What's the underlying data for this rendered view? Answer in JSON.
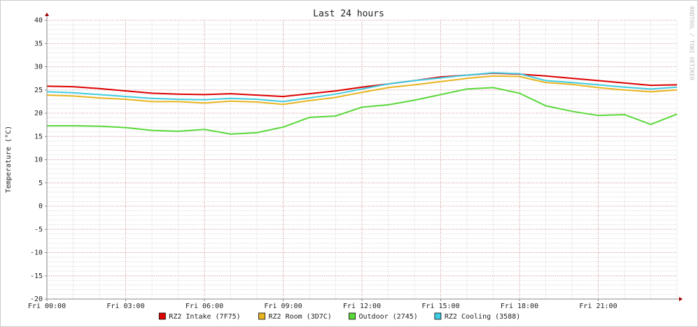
{
  "chart_data": {
    "type": "line",
    "title": "Last 24 hours",
    "y_label": "Temperature (°C)",
    "watermark": "RRDTOOL / TOBI OETIKER",
    "x": [
      0,
      1,
      2,
      3,
      4,
      5,
      6,
      7,
      8,
      9,
      10,
      11,
      12,
      13,
      14,
      15,
      16,
      17,
      18,
      19,
      20,
      21,
      22,
      23,
      24
    ],
    "xlim": [
      0,
      24
    ],
    "xticks": [
      {
        "value": 0,
        "label": "Fri 00:00"
      },
      {
        "value": 3,
        "label": "Fri 03:00"
      },
      {
        "value": 6,
        "label": "Fri 06:00"
      },
      {
        "value": 9,
        "label": "Fri 09:00"
      },
      {
        "value": 12,
        "label": "Fri 12:00"
      },
      {
        "value": 15,
        "label": "Fri 15:00"
      },
      {
        "value": 18,
        "label": "Fri 18:00"
      },
      {
        "value": 21,
        "label": "Fri 21:00"
      }
    ],
    "ylim": [
      -20,
      40
    ],
    "yticks": [
      -20,
      -15,
      -10,
      -5,
      0,
      5,
      10,
      15,
      20,
      25,
      30,
      35,
      40
    ],
    "grid": true,
    "legend": "bottom",
    "series": [
      {
        "name": "RZ2 Intake (7F75)",
        "color": "#dd0000",
        "values": [
          25.8,
          25.7,
          25.3,
          24.8,
          24.3,
          24.1,
          24.0,
          24.2,
          23.9,
          23.6,
          24.2,
          24.8,
          25.6,
          26.3,
          27.0,
          27.8,
          28.2,
          28.6,
          28.4,
          28.0,
          27.5,
          27.0,
          26.5,
          26.0,
          26.1
        ]
      },
      {
        "name": "RZ2 Room (3D7C)",
        "color": "#e8b420",
        "values": [
          23.9,
          23.7,
          23.3,
          23.0,
          22.5,
          22.5,
          22.2,
          22.6,
          22.4,
          21.9,
          22.7,
          23.4,
          24.5,
          25.5,
          26.1,
          26.8,
          27.5,
          28.0,
          27.9,
          26.6,
          26.2,
          25.5,
          25.0,
          24.6,
          25.0
        ]
      },
      {
        "name": "Outdoor (2745)",
        "color": "#5ad83a",
        "values": [
          17.3,
          17.3,
          17.2,
          16.9,
          16.3,
          16.1,
          16.5,
          15.5,
          15.8,
          17.0,
          19.1,
          19.4,
          21.3,
          21.8,
          22.8,
          24.0,
          25.2,
          25.5,
          24.3,
          21.6,
          20.4,
          19.5,
          19.7,
          17.6,
          19.8
        ]
      },
      {
        "name": "RZ2 Cooling (3588)",
        "color": "#40cce0",
        "values": [
          24.6,
          24.4,
          24.0,
          23.6,
          23.2,
          23.0,
          22.9,
          23.2,
          23.0,
          22.5,
          23.3,
          24.1,
          25.2,
          26.3,
          27.0,
          27.6,
          28.2,
          28.7,
          28.5,
          27.0,
          26.6,
          26.1,
          25.6,
          25.2,
          25.6
        ]
      }
    ]
  }
}
